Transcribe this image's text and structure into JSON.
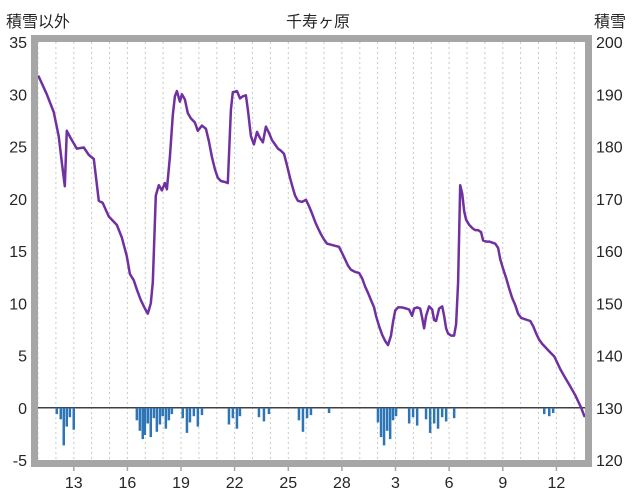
{
  "header": {
    "left_axis_title": "積雪以外",
    "title": "千寿ヶ原",
    "right_axis_title": "積雪"
  },
  "chart_data": {
    "type": "line+bar",
    "title": "千寿ヶ原",
    "legend": "none",
    "grid": "vertical-dashed",
    "left_axis": {
      "title": "積雪以外",
      "min": -5,
      "max": 35,
      "ticks": [
        35,
        30,
        25,
        20,
        15,
        10,
        5,
        0,
        -5
      ]
    },
    "right_axis": {
      "title": "積雪",
      "min": 120,
      "max": 200,
      "ticks": [
        200,
        190,
        180,
        170,
        160,
        150,
        140,
        130,
        120
      ]
    },
    "x_axis": {
      "unit": "day",
      "domain": [
        11.0,
        41.6
      ],
      "tick_positions": [
        13,
        16,
        19,
        22,
        25,
        28,
        31,
        34,
        37,
        40
      ],
      "tick_labels": [
        "13",
        "16",
        "19",
        "22",
        "25",
        "28",
        "3",
        "6",
        "9",
        "12"
      ],
      "gridline_every_day": true
    },
    "colors": {
      "line": "#7030a0",
      "bar": "#2e75b6",
      "grid": "#c9c9c9",
      "frame": "#a6a6a6",
      "zero_line": "#404040",
      "text": "#262626"
    },
    "series": [
      {
        "name": "積雪",
        "type": "line",
        "axis": "right",
        "color": "#7030a0",
        "points": [
          [
            11.04,
            193.4
          ],
          [
            11.49,
            190.0
          ],
          [
            11.88,
            186.6
          ],
          [
            12.16,
            182.0
          ],
          [
            12.33,
            177.0
          ],
          [
            12.5,
            172.4
          ],
          [
            12.61,
            183.0
          ],
          [
            12.83,
            181.6
          ],
          [
            13.17,
            179.6
          ],
          [
            13.56,
            179.8
          ],
          [
            13.84,
            178.4
          ],
          [
            14.12,
            177.6
          ],
          [
            14.4,
            169.6
          ],
          [
            14.62,
            169.2
          ],
          [
            14.96,
            166.6
          ],
          [
            15.41,
            165.0
          ],
          [
            15.69,
            162.6
          ],
          [
            15.97,
            159.0
          ],
          [
            16.14,
            155.6
          ],
          [
            16.36,
            154.4
          ],
          [
            16.53,
            152.6
          ],
          [
            16.75,
            150.6
          ],
          [
            16.98,
            149.0
          ],
          [
            17.14,
            148.0
          ],
          [
            17.31,
            150.0
          ],
          [
            17.42,
            154.0
          ],
          [
            17.59,
            170.6
          ],
          [
            17.76,
            172.6
          ],
          [
            17.93,
            171.6
          ],
          [
            18.1,
            173.0
          ],
          [
            18.21,
            171.8
          ],
          [
            18.38,
            178.0
          ],
          [
            18.54,
            186.0
          ],
          [
            18.66,
            189.6
          ],
          [
            18.77,
            190.6
          ],
          [
            18.94,
            188.6
          ],
          [
            19.05,
            190.0
          ],
          [
            19.22,
            189.0
          ],
          [
            19.38,
            186.4
          ],
          [
            19.55,
            185.4
          ],
          [
            19.78,
            184.6
          ],
          [
            19.94,
            183.0
          ],
          [
            20.17,
            184.0
          ],
          [
            20.39,
            183.4
          ],
          [
            20.56,
            181.0
          ],
          [
            20.73,
            178.0
          ],
          [
            20.9,
            175.6
          ],
          [
            21.06,
            174.0
          ],
          [
            21.23,
            173.4
          ],
          [
            21.46,
            173.2
          ],
          [
            21.62,
            173.0
          ],
          [
            21.79,
            187.0
          ],
          [
            21.9,
            190.4
          ],
          [
            22.13,
            190.6
          ],
          [
            22.3,
            189.2
          ],
          [
            22.46,
            189.6
          ],
          [
            22.63,
            189.8
          ],
          [
            22.74,
            187.0
          ],
          [
            22.91,
            182.0
          ],
          [
            23.08,
            180.4
          ],
          [
            23.25,
            182.8
          ],
          [
            23.42,
            181.6
          ],
          [
            23.58,
            180.8
          ],
          [
            23.75,
            183.8
          ],
          [
            23.92,
            182.6
          ],
          [
            24.09,
            181.2
          ],
          [
            24.26,
            180.4
          ],
          [
            24.42,
            179.6
          ],
          [
            24.59,
            179.2
          ],
          [
            24.76,
            178.6
          ],
          [
            24.93,
            176.4
          ],
          [
            25.1,
            174.0
          ],
          [
            25.26,
            172.0
          ],
          [
            25.38,
            170.6
          ],
          [
            25.54,
            169.6
          ],
          [
            25.77,
            169.4
          ],
          [
            25.99,
            169.8
          ],
          [
            26.16,
            168.6
          ],
          [
            26.33,
            167.2
          ],
          [
            26.5,
            165.6
          ],
          [
            26.66,
            164.4
          ],
          [
            26.83,
            163.2
          ],
          [
            27.0,
            162.2
          ],
          [
            27.17,
            161.4
          ],
          [
            27.39,
            161.2
          ],
          [
            27.62,
            161.0
          ],
          [
            27.84,
            160.8
          ],
          [
            28.01,
            159.6
          ],
          [
            28.18,
            158.4
          ],
          [
            28.34,
            157.2
          ],
          [
            28.51,
            156.4
          ],
          [
            28.74,
            156.0
          ],
          [
            28.96,
            155.8
          ],
          [
            29.13,
            154.8
          ],
          [
            29.3,
            153.2
          ],
          [
            29.46,
            152.0
          ],
          [
            29.63,
            150.6
          ],
          [
            29.8,
            149.2
          ],
          [
            29.91,
            147.6
          ],
          [
            30.08,
            145.6
          ],
          [
            30.25,
            144.0
          ],
          [
            30.42,
            142.8
          ],
          [
            30.58,
            142.0
          ],
          [
            30.75,
            143.8
          ],
          [
            30.86,
            146.4
          ],
          [
            30.98,
            148.6
          ],
          [
            31.14,
            149.2
          ],
          [
            31.37,
            149.2
          ],
          [
            31.59,
            149.0
          ],
          [
            31.76,
            148.8
          ],
          [
            31.93,
            147.6
          ],
          [
            32.04,
            149.0
          ],
          [
            32.21,
            149.2
          ],
          [
            32.38,
            149.0
          ],
          [
            32.49,
            147.2
          ],
          [
            32.6,
            145.2
          ],
          [
            32.71,
            147.6
          ],
          [
            32.88,
            149.4
          ],
          [
            33.05,
            148.8
          ],
          [
            33.16,
            146.8
          ],
          [
            33.27,
            146.6
          ],
          [
            33.44,
            149.0
          ],
          [
            33.61,
            149.4
          ],
          [
            33.72,
            147.6
          ],
          [
            33.83,
            145.2
          ],
          [
            33.94,
            144.2
          ],
          [
            34.11,
            143.8
          ],
          [
            34.28,
            143.8
          ],
          [
            34.39,
            146.0
          ],
          [
            34.5,
            154.0
          ],
          [
            34.62,
            172.6
          ],
          [
            34.73,
            171.0
          ],
          [
            34.84,
            167.6
          ],
          [
            34.95,
            166.0
          ],
          [
            35.12,
            165.0
          ],
          [
            35.29,
            164.4
          ],
          [
            35.46,
            164.0
          ],
          [
            35.62,
            164.0
          ],
          [
            35.79,
            163.6
          ],
          [
            35.9,
            162.0
          ],
          [
            36.07,
            161.8
          ],
          [
            36.24,
            161.8
          ],
          [
            36.41,
            161.6
          ],
          [
            36.58,
            161.4
          ],
          [
            36.74,
            160.6
          ],
          [
            36.86,
            158.4
          ],
          [
            37.02,
            156.6
          ],
          [
            37.19,
            154.8
          ],
          [
            37.36,
            152.8
          ],
          [
            37.53,
            151.0
          ],
          [
            37.7,
            149.6
          ],
          [
            37.86,
            148.0
          ],
          [
            38.03,
            147.2
          ],
          [
            38.2,
            147.0
          ],
          [
            38.37,
            146.8
          ],
          [
            38.54,
            146.6
          ],
          [
            38.7,
            145.6
          ],
          [
            38.87,
            144.2
          ],
          [
            39.04,
            143.0
          ],
          [
            39.21,
            142.2
          ],
          [
            39.38,
            141.6
          ],
          [
            39.54,
            141.0
          ],
          [
            39.71,
            140.4
          ],
          [
            39.88,
            139.8
          ],
          [
            40.05,
            138.6
          ],
          [
            40.22,
            137.4
          ],
          [
            40.38,
            136.4
          ],
          [
            40.55,
            135.4
          ],
          [
            40.72,
            134.4
          ],
          [
            40.89,
            133.4
          ],
          [
            41.06,
            132.4
          ],
          [
            41.22,
            131.2
          ],
          [
            41.39,
            130.0
          ],
          [
            41.56,
            128.4
          ]
        ]
      },
      {
        "name": "積雪以外",
        "type": "bar",
        "axis": "left",
        "color": "#2e75b6",
        "points": [
          [
            12.05,
            -0.6
          ],
          [
            12.27,
            -1.1
          ],
          [
            12.44,
            -3.6
          ],
          [
            12.61,
            -1.8
          ],
          [
            12.78,
            -0.9
          ],
          [
            13.0,
            -2.1
          ],
          [
            16.53,
            -1.2
          ],
          [
            16.7,
            -2.2
          ],
          [
            16.86,
            -3.0
          ],
          [
            16.98,
            -2.6
          ],
          [
            17.14,
            -1.5
          ],
          [
            17.31,
            -2.8
          ],
          [
            17.48,
            -1.0
          ],
          [
            17.65,
            -2.3
          ],
          [
            17.82,
            -1.6
          ],
          [
            17.98,
            -0.8
          ],
          [
            18.15,
            -2.0
          ],
          [
            18.32,
            -1.2
          ],
          [
            18.49,
            -0.6
          ],
          [
            19.1,
            -1.0
          ],
          [
            19.33,
            -2.4
          ],
          [
            19.5,
            -1.4
          ],
          [
            19.72,
            -0.8
          ],
          [
            19.94,
            -1.8
          ],
          [
            20.17,
            -0.7
          ],
          [
            21.68,
            -1.6
          ],
          [
            21.9,
            -1.0
          ],
          [
            22.13,
            -2.0
          ],
          [
            22.3,
            -0.8
          ],
          [
            23.36,
            -0.9
          ],
          [
            23.64,
            -1.3
          ],
          [
            23.92,
            -0.6
          ],
          [
            25.6,
            -1.2
          ],
          [
            25.82,
            -2.3
          ],
          [
            26.05,
            -1.0
          ],
          [
            26.27,
            -0.7
          ],
          [
            27.28,
            -0.5
          ],
          [
            30.02,
            -1.4
          ],
          [
            30.19,
            -2.8
          ],
          [
            30.36,
            -3.6
          ],
          [
            30.53,
            -2.2
          ],
          [
            30.7,
            -3.0
          ],
          [
            30.86,
            -1.2
          ],
          [
            31.03,
            -0.8
          ],
          [
            31.76,
            -1.5
          ],
          [
            31.98,
            -0.9
          ],
          [
            32.21,
            -1.7
          ],
          [
            32.71,
            -1.1
          ],
          [
            32.94,
            -2.4
          ],
          [
            33.16,
            -1.5
          ],
          [
            33.38,
            -2.0
          ],
          [
            33.61,
            -0.9
          ],
          [
            33.83,
            -1.3
          ],
          [
            34.28,
            -1.0
          ],
          [
            39.32,
            -0.6
          ],
          [
            39.6,
            -0.8
          ],
          [
            39.82,
            -0.5
          ]
        ]
      }
    ]
  }
}
